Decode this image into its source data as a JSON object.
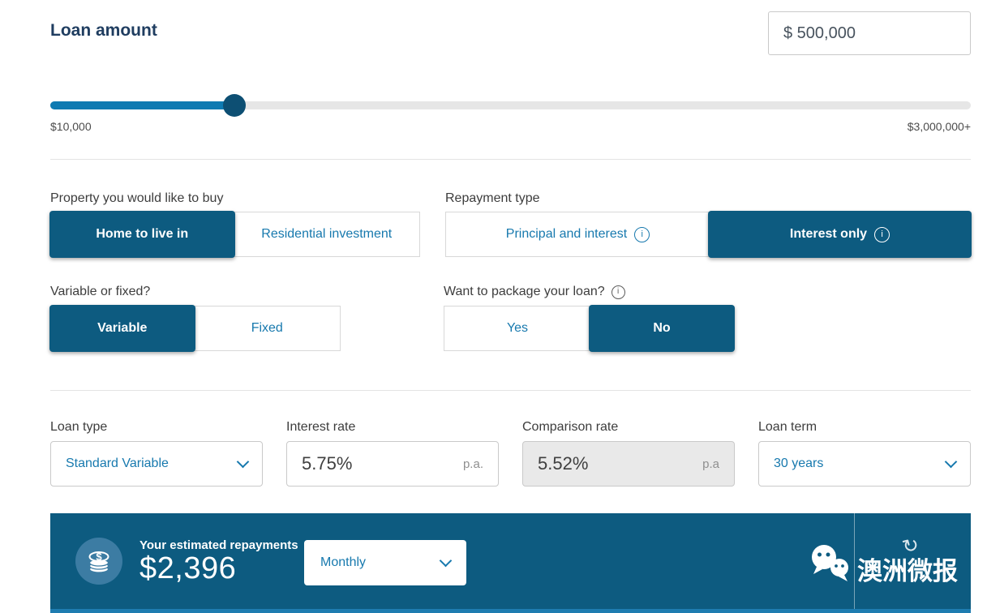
{
  "colors": {
    "primary_dark_blue": "#0d5b80",
    "link_blue": "#1779ae",
    "slider_fill": "#0e7ab2",
    "slider_handle": "#0d4f73",
    "bar_bottom_strip": "#1e7cb0",
    "readonly_field_bg": "#e9e9e9"
  },
  "loan_amount": {
    "label": "Loan amount",
    "value": "$ 500,000"
  },
  "slider": {
    "min_label": "$10,000",
    "max_label": "$3,000,000+",
    "fill_percent": 20
  },
  "toggles": {
    "property": {
      "label": "Property you would like to buy",
      "option1": "Home to live in",
      "option2": "Residential investment",
      "selected": "Home to live in"
    },
    "repayment": {
      "label": "Repayment type",
      "option1": "Principal and interest",
      "option2": "Interest only",
      "selected": "Interest only"
    },
    "rate_type": {
      "label": "Variable or fixed?",
      "option1": "Variable",
      "option2": "Fixed",
      "selected": "Variable"
    },
    "package": {
      "label": "Want to package your loan?",
      "option1": "Yes",
      "option2": "No",
      "selected": "No"
    }
  },
  "fields": {
    "loan_type": {
      "label": "Loan type",
      "value": "Standard Variable"
    },
    "interest_rate": {
      "label": "Interest rate",
      "value": "5.75%",
      "suffix": "p.a."
    },
    "comparison_rate": {
      "label": "Comparison rate",
      "value": "5.52%",
      "suffix": "p.a"
    },
    "loan_term": {
      "label": "Loan term",
      "value": "30 years"
    }
  },
  "results": {
    "label": "Your estimated repayments",
    "amount": "$2,396",
    "frequency": "Monthly"
  },
  "watermark": {
    "text": "澳洲微报",
    "icon": "wechat-logo",
    "swirl_icon": "circular-arrow"
  }
}
